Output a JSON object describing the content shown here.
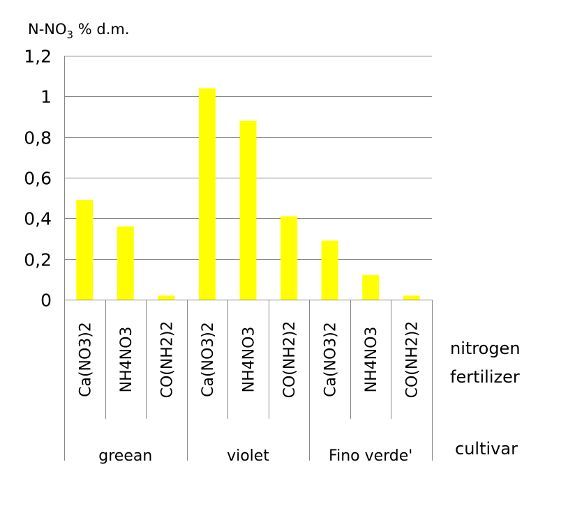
{
  "chart_data": {
    "type": "bar",
    "title": "",
    "ylabel": "N-NO3 % d.m.",
    "ylabel_parts": {
      "prefix": "N-NO",
      "subscript": "3",
      "suffix": " % d.m."
    },
    "ylim": [
      0,
      1.2
    ],
    "yticks": [
      0,
      0.2,
      0.4,
      0.6,
      0.8,
      1.0,
      1.2
    ],
    "ytick_labels": [
      "0",
      "0,2",
      "0,4",
      "0,6",
      "0,8",
      "1",
      "1,2"
    ],
    "grid": true,
    "bar_color": "#FFFF00",
    "categories": [
      "Ca(NO3)2",
      "NH4NO3",
      "CO(NH2)2",
      "Ca(NO3)2",
      "NH4NO3",
      "CO(NH2)2",
      "Ca(NO3)2",
      "NH4NO3",
      "CO(NH2)2"
    ],
    "groups": [
      {
        "label": "greean",
        "size": 3
      },
      {
        "label": "violet",
        "size": 3
      },
      {
        "label": "Fino verde'",
        "size": 3
      }
    ],
    "values": [
      0.49,
      0.36,
      0.02,
      1.04,
      0.88,
      0.41,
      0.29,
      0.12,
      0.02
    ],
    "category_axis_title": "nitrogen fertilizer",
    "category_axis_title_lines": [
      "nitrogen",
      "fertilizer"
    ],
    "group_axis_title": "cultivar"
  }
}
